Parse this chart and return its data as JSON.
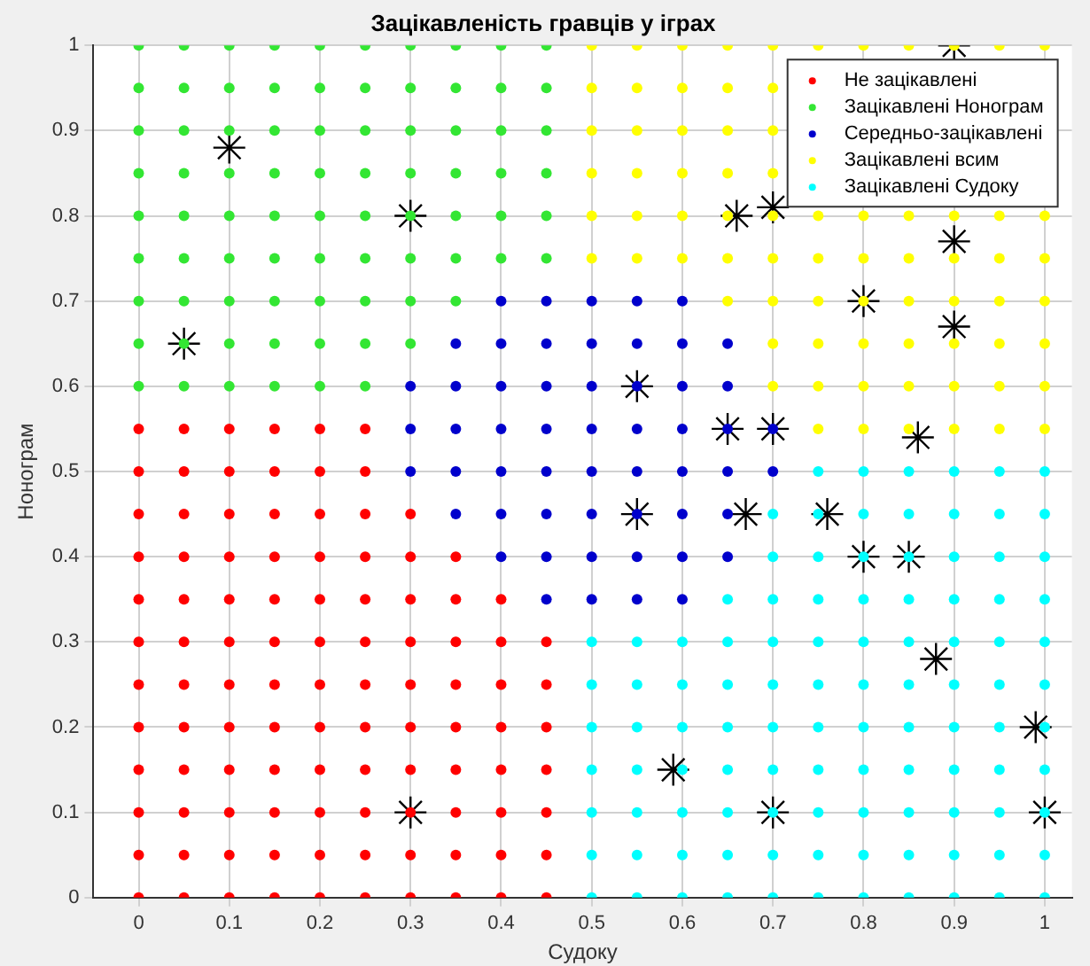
{
  "chart_data": {
    "type": "scatter",
    "title": "Зацікавленість гравців у іграх",
    "xlabel": "Судоку",
    "ylabel": "Нонограм",
    "xlim": [
      -0.05,
      1.03
    ],
    "ylim": [
      0,
      1
    ],
    "xticks": [
      0,
      0.1,
      0.2,
      0.3,
      0.4,
      0.5,
      0.6,
      0.7,
      0.8,
      0.9,
      1
    ],
    "yticks": [
      0,
      0.1,
      0.2,
      0.3,
      0.4,
      0.5,
      0.6,
      0.7,
      0.8,
      0.9,
      1
    ],
    "grid": true,
    "legend": "top right",
    "marker": "circle",
    "series": [
      {
        "name": "Не зацікавлені",
        "color": "#ff0000",
        "x": [
          0,
          0,
          0,
          0,
          0,
          0,
          0,
          0,
          0,
          0,
          0,
          0,
          0.05,
          0.05,
          0.05,
          0.05,
          0.05,
          0.05,
          0.05,
          0.05,
          0.05,
          0.05,
          0.05,
          0.05,
          0.1,
          0.1,
          0.1,
          0.1,
          0.1,
          0.1,
          0.1,
          0.1,
          0.1,
          0.1,
          0.1,
          0.1,
          0.15,
          0.15,
          0.15,
          0.15,
          0.15,
          0.15,
          0.15,
          0.15,
          0.15,
          0.15,
          0.15,
          0.15,
          0.2,
          0.2,
          0.2,
          0.2,
          0.2,
          0.2,
          0.2,
          0.2,
          0.2,
          0.2,
          0.2,
          0.2,
          0.25,
          0.25,
          0.25,
          0.25,
          0.25,
          0.25,
          0.25,
          0.25,
          0.25,
          0.25,
          0.25,
          0.25,
          0.3,
          0.3,
          0.3,
          0.3,
          0.3,
          0.3,
          0.3,
          0.3,
          0.3,
          0.3,
          0.35,
          0.35,
          0.35,
          0.35,
          0.35,
          0.35,
          0.35,
          0.35,
          0.35,
          0.4,
          0.4,
          0.4,
          0.4,
          0.4,
          0.4,
          0.4,
          0.4,
          0.45,
          0.45,
          0.45,
          0.45,
          0.45,
          0.45,
          0.45
        ],
        "values": [
          0,
          0.05,
          0.1,
          0.15,
          0.2,
          0.25,
          0.3,
          0.35,
          0.4,
          0.45,
          0.5,
          0.55,
          0,
          0.05,
          0.1,
          0.15,
          0.2,
          0.25,
          0.3,
          0.35,
          0.4,
          0.45,
          0.5,
          0.55,
          0,
          0.05,
          0.1,
          0.15,
          0.2,
          0.25,
          0.3,
          0.35,
          0.4,
          0.45,
          0.5,
          0.55,
          0,
          0.05,
          0.1,
          0.15,
          0.2,
          0.25,
          0.3,
          0.35,
          0.4,
          0.45,
          0.5,
          0.55,
          0,
          0.05,
          0.1,
          0.15,
          0.2,
          0.25,
          0.3,
          0.35,
          0.4,
          0.45,
          0.5,
          0.55,
          0,
          0.05,
          0.1,
          0.15,
          0.2,
          0.25,
          0.3,
          0.35,
          0.4,
          0.45,
          0.5,
          0.55,
          0,
          0.05,
          0.1,
          0.15,
          0.2,
          0.25,
          0.3,
          0.35,
          0.4,
          0.45,
          0,
          0.05,
          0.1,
          0.15,
          0.2,
          0.25,
          0.3,
          0.35,
          0.4,
          0,
          0.05,
          0.1,
          0.15,
          0.2,
          0.25,
          0.3,
          0.35,
          0,
          0.05,
          0.1,
          0.15,
          0.2,
          0.25,
          0.3
        ]
      },
      {
        "name": "Зацікавлені Нонограм",
        "color": "#33e633",
        "x": [
          0,
          0,
          0,
          0,
          0,
          0,
          0,
          0,
          0,
          0.05,
          0.05,
          0.05,
          0.05,
          0.05,
          0.05,
          0.05,
          0.05,
          0.05,
          0.1,
          0.1,
          0.1,
          0.1,
          0.1,
          0.1,
          0.1,
          0.1,
          0.1,
          0.15,
          0.15,
          0.15,
          0.15,
          0.15,
          0.15,
          0.15,
          0.15,
          0.15,
          0.2,
          0.2,
          0.2,
          0.2,
          0.2,
          0.2,
          0.2,
          0.2,
          0.2,
          0.25,
          0.25,
          0.25,
          0.25,
          0.25,
          0.25,
          0.25,
          0.25,
          0.25,
          0.3,
          0.3,
          0.3,
          0.3,
          0.3,
          0.3,
          0.3,
          0.3,
          0.35,
          0.35,
          0.35,
          0.35,
          0.35,
          0.35,
          0.35,
          0.4,
          0.4,
          0.4,
          0.4,
          0.4,
          0.4,
          0.45,
          0.45,
          0.45,
          0.45,
          0.45,
          0.45
        ],
        "values": [
          0.6,
          0.65,
          0.7,
          0.75,
          0.8,
          0.85,
          0.9,
          0.95,
          1,
          0.6,
          0.65,
          0.7,
          0.75,
          0.8,
          0.85,
          0.9,
          0.95,
          1,
          0.6,
          0.65,
          0.7,
          0.75,
          0.8,
          0.85,
          0.9,
          0.95,
          1,
          0.6,
          0.65,
          0.7,
          0.75,
          0.8,
          0.85,
          0.9,
          0.95,
          1,
          0.6,
          0.65,
          0.7,
          0.75,
          0.8,
          0.85,
          0.9,
          0.95,
          1,
          0.6,
          0.65,
          0.7,
          0.75,
          0.8,
          0.85,
          0.9,
          0.95,
          1,
          0.65,
          0.7,
          0.75,
          0.8,
          0.85,
          0.9,
          0.95,
          1,
          0.7,
          0.75,
          0.8,
          0.85,
          0.9,
          0.95,
          1,
          0.75,
          0.8,
          0.85,
          0.9,
          0.95,
          1,
          0.75,
          0.8,
          0.85,
          0.9,
          0.95,
          1
        ]
      },
      {
        "name": "Середньо-зацікавлені",
        "color": "#0000cc",
        "x": [
          0.3,
          0.3,
          0.3,
          0.35,
          0.35,
          0.35,
          0.35,
          0.35,
          0.4,
          0.4,
          0.4,
          0.4,
          0.4,
          0.4,
          0.4,
          0.45,
          0.45,
          0.45,
          0.45,
          0.45,
          0.45,
          0.45,
          0.45,
          0.5,
          0.5,
          0.5,
          0.5,
          0.5,
          0.5,
          0.5,
          0.5,
          0.55,
          0.55,
          0.55,
          0.55,
          0.55,
          0.55,
          0.55,
          0.55,
          0.6,
          0.6,
          0.6,
          0.6,
          0.6,
          0.6,
          0.6,
          0.6,
          0.65,
          0.65,
          0.65,
          0.65,
          0.65,
          0.65,
          0.7,
          0.7
        ],
        "values": [
          0.5,
          0.55,
          0.6,
          0.45,
          0.5,
          0.55,
          0.6,
          0.65,
          0.4,
          0.45,
          0.5,
          0.55,
          0.6,
          0.65,
          0.7,
          0.35,
          0.4,
          0.45,
          0.5,
          0.55,
          0.6,
          0.65,
          0.7,
          0.35,
          0.4,
          0.45,
          0.5,
          0.55,
          0.6,
          0.65,
          0.7,
          0.35,
          0.4,
          0.45,
          0.5,
          0.55,
          0.6,
          0.65,
          0.7,
          0.35,
          0.4,
          0.45,
          0.5,
          0.55,
          0.6,
          0.65,
          0.7,
          0.4,
          0.45,
          0.5,
          0.55,
          0.6,
          0.65,
          0.5,
          0.55
        ]
      },
      {
        "name": "Зацікавлені всим",
        "color": "#ffff00",
        "x": [
          0.5,
          0.5,
          0.5,
          0.5,
          0.5,
          0.5,
          0.55,
          0.55,
          0.55,
          0.55,
          0.55,
          0.55,
          0.6,
          0.6,
          0.6,
          0.6,
          0.6,
          0.6,
          0.65,
          0.65,
          0.65,
          0.65,
          0.65,
          0.65,
          0.65,
          0.7,
          0.7,
          0.7,
          0.7,
          0.7,
          0.7,
          0.7,
          0.7,
          0.7,
          0.75,
          0.75,
          0.75,
          0.75,
          0.75,
          0.75,
          0.75,
          0.8,
          0.8,
          0.8,
          0.8,
          0.8,
          0.8,
          0.8,
          0.85,
          0.85,
          0.85,
          0.85,
          0.85,
          0.85,
          0.85,
          0.9,
          0.9,
          0.9,
          0.9,
          0.9,
          0.9,
          0.9,
          0.95,
          0.95,
          0.95,
          0.95,
          0.95,
          0.95,
          0.95,
          1,
          1,
          1,
          1,
          1,
          1,
          1
        ],
        "values": [
          0.75,
          0.8,
          0.85,
          0.9,
          0.95,
          1,
          0.75,
          0.8,
          0.85,
          0.9,
          0.95,
          1,
          0.75,
          0.8,
          0.85,
          0.9,
          0.95,
          1,
          0.7,
          0.75,
          0.8,
          0.85,
          0.9,
          0.95,
          1,
          0.6,
          0.65,
          0.7,
          0.75,
          0.8,
          0.85,
          0.9,
          0.95,
          1,
          0.55,
          0.6,
          0.65,
          0.7,
          0.75,
          0.8,
          1,
          0.55,
          0.6,
          0.65,
          0.7,
          0.75,
          0.8,
          1,
          0.55,
          0.6,
          0.65,
          0.7,
          0.75,
          0.8,
          1,
          0.55,
          0.6,
          0.65,
          0.7,
          0.75,
          0.8,
          1,
          0.55,
          0.6,
          0.65,
          0.7,
          0.75,
          0.8,
          1,
          0.55,
          0.6,
          0.65,
          0.7,
          0.75,
          0.8,
          1
        ]
      },
      {
        "name": "Зацікавлені Судоку",
        "color": "#00ffff",
        "x": [
          0.5,
          0.5,
          0.5,
          0.5,
          0.5,
          0.5,
          0.5,
          0.55,
          0.55,
          0.55,
          0.55,
          0.55,
          0.55,
          0.55,
          0.6,
          0.6,
          0.6,
          0.6,
          0.6,
          0.6,
          0.6,
          0.65,
          0.65,
          0.65,
          0.65,
          0.65,
          0.65,
          0.65,
          0.65,
          0.7,
          0.7,
          0.7,
          0.7,
          0.7,
          0.7,
          0.7,
          0.7,
          0.7,
          0.7,
          0.75,
          0.75,
          0.75,
          0.75,
          0.75,
          0.75,
          0.75,
          0.75,
          0.75,
          0.75,
          0.75,
          0.8,
          0.8,
          0.8,
          0.8,
          0.8,
          0.8,
          0.8,
          0.8,
          0.8,
          0.8,
          0.8,
          0.85,
          0.85,
          0.85,
          0.85,
          0.85,
          0.85,
          0.85,
          0.85,
          0.85,
          0.85,
          0.85,
          0.9,
          0.9,
          0.9,
          0.9,
          0.9,
          0.9,
          0.9,
          0.9,
          0.9,
          0.9,
          0.9,
          0.95,
          0.95,
          0.95,
          0.95,
          0.95,
          0.95,
          0.95,
          0.95,
          0.95,
          0.95,
          0.95,
          1,
          1,
          1,
          1,
          1,
          1,
          1,
          1,
          1,
          1,
          1
        ],
        "values": [
          0,
          0.05,
          0.1,
          0.15,
          0.2,
          0.25,
          0.3,
          0,
          0.05,
          0.1,
          0.15,
          0.2,
          0.25,
          0.3,
          0,
          0.05,
          0.1,
          0.15,
          0.2,
          0.25,
          0.3,
          0,
          0.05,
          0.1,
          0.15,
          0.2,
          0.25,
          0.3,
          0.35,
          0,
          0.05,
          0.1,
          0.15,
          0.2,
          0.25,
          0.3,
          0.35,
          0.4,
          0.45,
          0,
          0.05,
          0.1,
          0.15,
          0.2,
          0.25,
          0.3,
          0.35,
          0.4,
          0.45,
          0.5,
          0,
          0.05,
          0.1,
          0.15,
          0.2,
          0.25,
          0.3,
          0.35,
          0.4,
          0.45,
          0.5,
          0,
          0.05,
          0.1,
          0.15,
          0.2,
          0.25,
          0.3,
          0.35,
          0.4,
          0.45,
          0.5,
          0,
          0.05,
          0.1,
          0.15,
          0.2,
          0.25,
          0.3,
          0.35,
          0.4,
          0.45,
          0.5,
          0,
          0.05,
          0.1,
          0.15,
          0.2,
          0.25,
          0.3,
          0.35,
          0.4,
          0.45,
          0.5,
          0,
          0.05,
          0.1,
          0.15,
          0.2,
          0.25,
          0.3,
          0.35,
          0.4,
          0.45,
          0.5
        ]
      },
      {
        "color": "#000000",
        "marker": "cross",
        "x": [
          0.1,
          0.3,
          0.05,
          0.3,
          0.55,
          0.55,
          0.59,
          0.65,
          0.66,
          0.67,
          0.7,
          0.7,
          0.7,
          0.76,
          0.8,
          0.8,
          0.85,
          0.86,
          0.88,
          0.9,
          0.9,
          0.9,
          0.99,
          1
        ],
        "values": [
          0.88,
          0.8,
          0.65,
          0.1,
          0.6,
          0.45,
          0.15,
          0.55,
          0.8,
          0.45,
          0.81,
          0.55,
          0.1,
          0.45,
          0.7,
          0.4,
          0.4,
          0.54,
          0.28,
          1,
          0.77,
          0.67,
          0.2,
          0.1
        ]
      }
    ]
  }
}
